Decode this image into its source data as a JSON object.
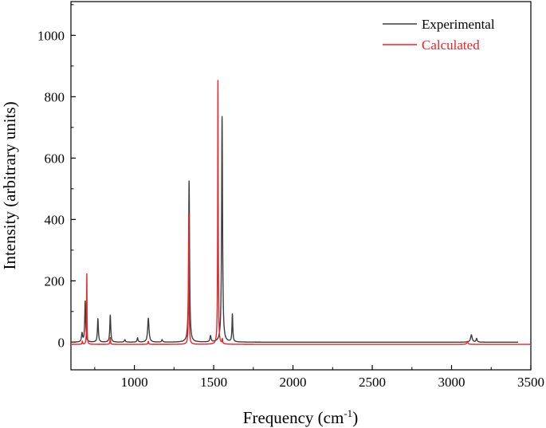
{
  "chart_data": {
    "type": "line",
    "title": "",
    "xlabel_main": "Frequency (cm",
    "xlabel_sup": "-1",
    "xlabel_tail": ")",
    "ylabel": "Intensity (arbitrary units)",
    "xlim": [
      600,
      3500
    ],
    "ylim": [
      -90,
      1110
    ],
    "x_ticks": [
      1000,
      1500,
      2000,
      2500,
      3000,
      3500
    ],
    "x_tick_labels": [
      "1000",
      "1500",
      "2000",
      "2500",
      "3000",
      "3500"
    ],
    "y_ticks": [
      0,
      200,
      400,
      600,
      800,
      1000
    ],
    "y_tick_labels": [
      "0",
      "200",
      "400",
      "600",
      "800",
      "1000"
    ],
    "grid": false,
    "legend_position": "top-right",
    "series": [
      {
        "name": "Experimental",
        "color": "#3d3d3d",
        "baseline": 0,
        "x_start": 600,
        "x_end": 3420,
        "peaks": [
          {
            "x": 670,
            "height": 28,
            "width": 8
          },
          {
            "x": 690,
            "height": 133,
            "width": 7
          },
          {
            "x": 770,
            "height": 76,
            "width": 7
          },
          {
            "x": 848,
            "height": 88,
            "width": 7
          },
          {
            "x": 940,
            "height": 8,
            "width": 8
          },
          {
            "x": 1020,
            "height": 14,
            "width": 7
          },
          {
            "x": 1088,
            "height": 78,
            "width": 10
          },
          {
            "x": 1175,
            "height": 8,
            "width": 8
          },
          {
            "x": 1345,
            "height": 525,
            "width": 7
          },
          {
            "x": 1480,
            "height": 20,
            "width": 8
          },
          {
            "x": 1553,
            "height": 735,
            "width": 7
          },
          {
            "x": 1618,
            "height": 90,
            "width": 6
          },
          {
            "x": 3125,
            "height": 24,
            "width": 12
          },
          {
            "x": 3158,
            "height": 12,
            "width": 8
          }
        ]
      },
      {
        "name": "Calculated",
        "color": "#e8232a",
        "baseline": -7,
        "x_start": 600,
        "x_end": 3500,
        "peaks": [
          {
            "x": 672,
            "height": 10,
            "width": 4
          },
          {
            "x": 700,
            "height": 230,
            "width": 3
          },
          {
            "x": 848,
            "height": 22,
            "width": 4
          },
          {
            "x": 1088,
            "height": 10,
            "width": 5
          },
          {
            "x": 1343,
            "height": 425,
            "width": 4
          },
          {
            "x": 1527,
            "height": 860,
            "width": 4
          },
          {
            "x": 1555,
            "height": 15,
            "width": 4
          },
          {
            "x": 3100,
            "height": 10,
            "width": 8
          }
        ]
      }
    ]
  }
}
